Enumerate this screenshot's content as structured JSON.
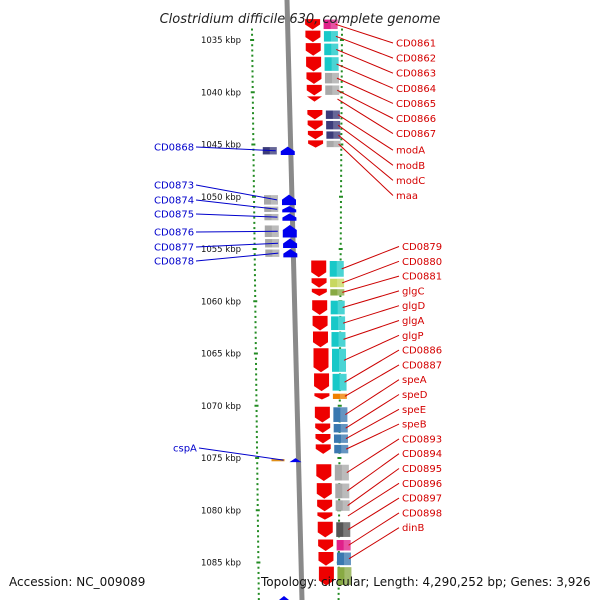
{
  "title": "Clostridium difficile 630, complete genome",
  "footer": {
    "accession": "Accession: NC_009089",
    "topology": "Topology: circular; Length: 4,290,252 bp; Genes: 3,926"
  },
  "colors": {
    "forward_gene": "#ee0000",
    "reverse_gene": "#0000ee",
    "backbone": "#8a8a8a",
    "ticks": "#228b22",
    "label_forward": "#cc0000",
    "label_reverse": "#0000cc"
  },
  "scale": {
    "kbp_range": [
      1030.9,
      1088.6
    ],
    "labels": [
      {
        "kbp": 1035,
        "text": "1035 kbp"
      },
      {
        "kbp": 1040,
        "text": "1040 kbp"
      },
      {
        "kbp": 1045,
        "text": "1045 kbp"
      },
      {
        "kbp": 1050,
        "text": "1050 kbp"
      },
      {
        "kbp": 1055,
        "text": "1055 kbp"
      },
      {
        "kbp": 1060,
        "text": "1060 kbp"
      },
      {
        "kbp": 1065,
        "text": "1065 kbp"
      },
      {
        "kbp": 1070,
        "text": "1070 kbp"
      },
      {
        "kbp": 1075,
        "text": "1075 kbp"
      },
      {
        "kbp": 1080,
        "text": "1080 kbp"
      },
      {
        "kbp": 1085,
        "text": "1085 kbp"
      }
    ]
  },
  "genes_forward": [
    {
      "name": "CD0861",
      "start": 1033.0,
      "end": 1034.0,
      "cog_color": "#e0208a"
    },
    {
      "name": "CD0862",
      "start": 1034.1,
      "end": 1035.2,
      "cog_color": "#18c8c8"
    },
    {
      "name": "CD0863",
      "start": 1035.3,
      "end": 1036.5,
      "cog_color": "#18c8c8"
    },
    {
      "name": "CD0864",
      "start": 1036.6,
      "end": 1038.0,
      "cog_color": "#18c8c8"
    },
    {
      "name": "CD0865",
      "start": 1038.1,
      "end": 1039.2,
      "cog_color": "#a8a8a8"
    },
    {
      "name": "CD0866",
      "start": 1039.3,
      "end": 1040.3,
      "cog_color": "#a8a8a8"
    },
    {
      "name": "CD0867",
      "start": 1040.4,
      "end": 1040.9,
      "cog_color": ""
    },
    {
      "name": "modA",
      "start": 1041.7,
      "end": 1042.6,
      "cog_color": "#3c3c7a"
    },
    {
      "name": "modB",
      "start": 1042.7,
      "end": 1043.6,
      "cog_color": "#3c3c7a"
    },
    {
      "name": "modC",
      "start": 1043.7,
      "end": 1044.5,
      "cog_color": "#3c3c7a"
    },
    {
      "name": "maa",
      "start": 1044.6,
      "end": 1045.3,
      "cog_color": "#a8a8a8"
    },
    {
      "name": "CD0879",
      "start": 1056.1,
      "end": 1057.7,
      "cog_color": "#18c8c8"
    },
    {
      "name": "CD0880",
      "start": 1057.8,
      "end": 1058.7,
      "cog_color": "#c8d860"
    },
    {
      "name": "CD0881",
      "start": 1058.8,
      "end": 1059.5,
      "cog_color": "#88aa44"
    },
    {
      "name": "glgC",
      "start": 1059.9,
      "end": 1061.3,
      "cog_color": "#18c8c8"
    },
    {
      "name": "glgD",
      "start": 1061.4,
      "end": 1062.8,
      "cog_color": "#18c8c8"
    },
    {
      "name": "glgA",
      "start": 1062.9,
      "end": 1064.4,
      "cog_color": "#18c8c8"
    },
    {
      "name": "glgP",
      "start": 1064.5,
      "end": 1066.8,
      "cog_color": "#18c8c8"
    },
    {
      "name": "CD0886",
      "start": 1066.9,
      "end": 1068.6,
      "cog_color": "#18c8c8"
    },
    {
      "name": "CD0887",
      "start": 1068.8,
      "end": 1069.4,
      "cog_color": "#f08000"
    },
    {
      "name": "speA",
      "start": 1070.1,
      "end": 1071.6,
      "cog_color": "#3a78b0"
    },
    {
      "name": "speD",
      "start": 1071.7,
      "end": 1072.6,
      "cog_color": "#3a78b0"
    },
    {
      "name": "speE",
      "start": 1072.7,
      "end": 1073.6,
      "cog_color": "#3a78b0"
    },
    {
      "name": "speB",
      "start": 1073.7,
      "end": 1074.6,
      "cog_color": "#3a78b0"
    },
    {
      "name": "CD0893",
      "start": 1075.6,
      "end": 1077.2,
      "cog_color": "#a8a8a8"
    },
    {
      "name": "CD0894",
      "start": 1077.4,
      "end": 1078.9,
      "cog_color": "#a8a8a8"
    },
    {
      "name": "CD0895",
      "start": 1079.0,
      "end": 1080.1,
      "cog_color": "#a8a8a8"
    },
    {
      "name": "CD0896",
      "start": 1080.2,
      "end": 1080.9,
      "cog_color": ""
    },
    {
      "name": "CD0897",
      "start": 1081.1,
      "end": 1082.6,
      "cog_color": "#555555"
    },
    {
      "name": "CD0898",
      "start": 1082.8,
      "end": 1083.9,
      "cog_color": "#e0208a"
    },
    {
      "name": "dinB",
      "start": 1084.0,
      "end": 1085.3,
      "cog_color": "#3a78b0"
    }
  ],
  "gene_forward_extra": {
    "start": 1085.4,
    "end": 1087.2,
    "cog_color": "#88aa44"
  },
  "genes_reverse": [
    {
      "name": "CD0868",
      "start": 1045.2,
      "end": 1046.0,
      "cog_color": "#3c3c7a"
    },
    {
      "name": "CD0873",
      "start": 1049.8,
      "end": 1050.8,
      "cog_color": "#a8a8a8"
    },
    {
      "name": "CD0874",
      "start": 1050.9,
      "end": 1051.5,
      "cog_color": "#a8a8a8"
    },
    {
      "name": "CD0875",
      "start": 1051.6,
      "end": 1052.3,
      "cog_color": "#a8a8a8"
    },
    {
      "name": "CD0876",
      "start": 1052.7,
      "end": 1053.9,
      "cog_color": "#a8a8a8"
    },
    {
      "name": "CD0877",
      "start": 1054.0,
      "end": 1054.9,
      "cog_color": "#a8a8a8"
    },
    {
      "name": "CD0878",
      "start": 1055.0,
      "end": 1055.8,
      "cog_color": "#a8a8a8"
    },
    {
      "name": "cspA",
      "start": 1075.0,
      "end": 1075.4,
      "cog_color": "#e09018"
    }
  ]
}
